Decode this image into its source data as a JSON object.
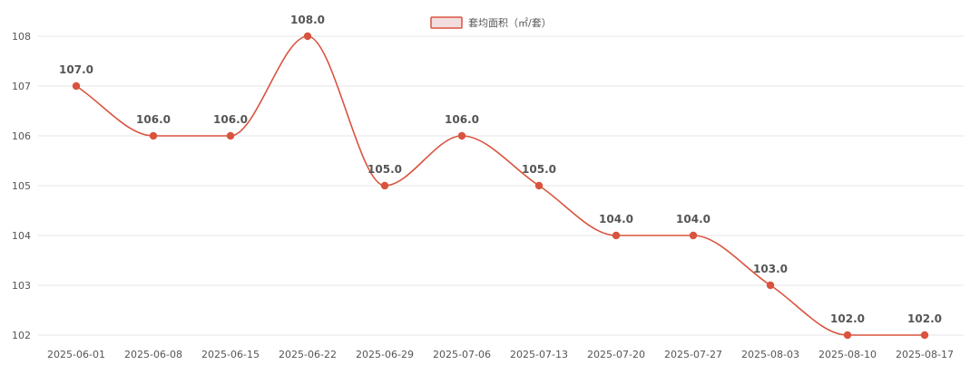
{
  "chart_data": {
    "type": "line",
    "categories": [
      "2025-06-01",
      "2025-06-08",
      "2025-06-15",
      "2025-06-22",
      "2025-06-29",
      "2025-07-06",
      "2025-07-13",
      "2025-07-20",
      "2025-07-27",
      "2025-08-03",
      "2025-08-10",
      "2025-08-17"
    ],
    "series": [
      {
        "name": "套均面积（㎡/套）",
        "values": [
          107.0,
          106.0,
          106.0,
          108.0,
          105.0,
          106.0,
          105.0,
          104.0,
          104.0,
          103.0,
          102.0,
          102.0
        ],
        "color": "#d9533f"
      }
    ],
    "y_ticks": [
      "102",
      "103",
      "104",
      "105",
      "106",
      "107",
      "108"
    ],
    "ylim": [
      102,
      108
    ],
    "grid": true,
    "legend_position": "top-center",
    "smooth": true
  }
}
